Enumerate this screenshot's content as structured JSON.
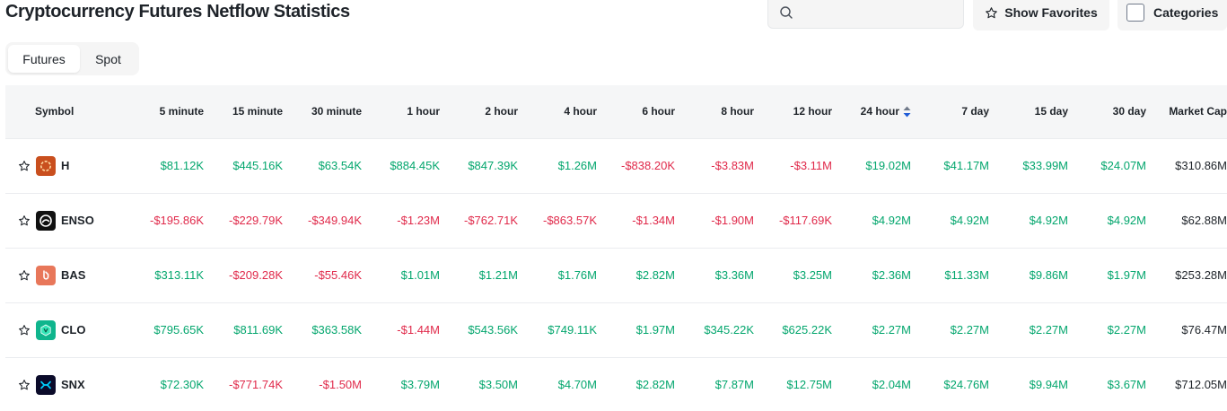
{
  "page": {
    "title": "Cryptocurrency Futures Netflow Statistics"
  },
  "search": {
    "placeholder": "",
    "value": ""
  },
  "toolbar": {
    "show_favorites_label": "Show Favorites",
    "categories_label": "Categories"
  },
  "tabs": [
    {
      "label": "Futures",
      "active": true
    },
    {
      "label": "Spot",
      "active": false
    }
  ],
  "colors": {
    "positive": "#03a66d",
    "negative": "#e0294a",
    "sort_active": "#1e5bd6"
  },
  "table": {
    "headers": [
      "Symbol",
      "5 minute",
      "15 minute",
      "30 minute",
      "1 hour",
      "2 hour",
      "4 hour",
      "6 hour",
      "8 hour",
      "12 hour",
      "24 hour",
      "7 day",
      "15 day",
      "30 day",
      "Market Cap"
    ],
    "sorted_column": "24 hour",
    "rows": [
      {
        "symbol": "H",
        "icon": "h-coin-icon",
        "values": [
          "$81.12K",
          "$445.16K",
          "$63.54K",
          "$884.45K",
          "$847.39K",
          "$1.26M",
          "-$838.20K",
          "-$3.83M",
          "-$3.11M",
          "$19.02M",
          "$41.17M",
          "$33.99M",
          "$24.07M"
        ],
        "market_cap": "$310.86M"
      },
      {
        "symbol": "ENSO",
        "icon": "enso-coin-icon",
        "values": [
          "-$195.86K",
          "-$229.79K",
          "-$349.94K",
          "-$1.23M",
          "-$762.71K",
          "-$863.57K",
          "-$1.34M",
          "-$1.90M",
          "-$117.69K",
          "$4.92M",
          "$4.92M",
          "$4.92M",
          "$4.92M"
        ],
        "market_cap": "$62.88M"
      },
      {
        "symbol": "BAS",
        "icon": "bas-coin-icon",
        "values": [
          "$313.11K",
          "-$209.28K",
          "-$55.46K",
          "$1.01M",
          "$1.21M",
          "$1.76M",
          "$2.82M",
          "$3.36M",
          "$3.25M",
          "$2.36M",
          "$11.33M",
          "$9.86M",
          "$1.97M"
        ],
        "market_cap": "$253.28M"
      },
      {
        "symbol": "CLO",
        "icon": "clo-coin-icon",
        "values": [
          "$795.65K",
          "$811.69K",
          "$363.58K",
          "-$1.44M",
          "$543.56K",
          "$749.11K",
          "$1.97M",
          "$345.22K",
          "$625.22K",
          "$2.27M",
          "$2.27M",
          "$2.27M",
          "$2.27M"
        ],
        "market_cap": "$76.47M"
      },
      {
        "symbol": "SNX",
        "icon": "snx-coin-icon",
        "values": [
          "$72.30K",
          "-$771.74K",
          "-$1.50M",
          "$3.79M",
          "$3.50M",
          "$4.70M",
          "$2.82M",
          "$7.87M",
          "$12.75M",
          "$2.04M",
          "$24.76M",
          "$9.94M",
          "$3.67M"
        ],
        "market_cap": "$712.05M"
      }
    ]
  }
}
